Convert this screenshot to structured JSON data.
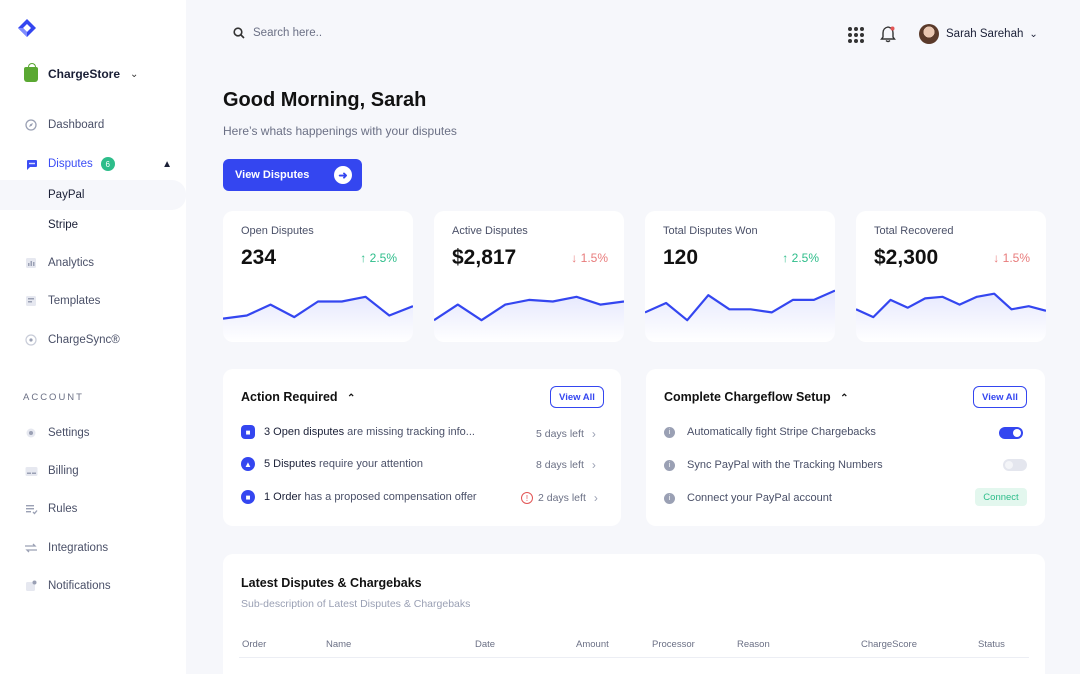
{
  "sidebar": {
    "store_name": "ChargeStore",
    "items": [
      {
        "label": "Dashboard"
      },
      {
        "label": "Disputes",
        "badge": "6"
      },
      {
        "label": "PayPal"
      },
      {
        "label": "Stripe"
      },
      {
        "label": "Analytics"
      },
      {
        "label": "Templates"
      },
      {
        "label": "ChargeSync®"
      }
    ],
    "account_label": "ACCOUNT",
    "account_items": [
      {
        "label": "Settings"
      },
      {
        "label": "Billing"
      },
      {
        "label": "Rules"
      },
      {
        "label": "Integrations"
      },
      {
        "label": "Notifications"
      }
    ]
  },
  "topbar": {
    "search_placeholder": "Search here..",
    "user_name": "Sarah Sarehah"
  },
  "header": {
    "greeting": "Good Morning, Sarah",
    "subtitle": "Here’s whats happenings with your disputes",
    "cta": "View Disputes"
  },
  "stats": [
    {
      "label": "Open Disputes",
      "value": "234",
      "delta": "2.5%",
      "trend": "up",
      "spark": [
        12,
        16,
        30,
        14,
        34,
        34,
        40,
        16,
        28
      ]
    },
    {
      "label": "Active Disputes",
      "value": "$2,817",
      "delta": "1.5%",
      "trend": "down",
      "spark": [
        10,
        30,
        10,
        30,
        36,
        34,
        40,
        30,
        34
      ]
    },
    {
      "label": "Total Disputes Won",
      "value": "120",
      "delta": "2.5%",
      "trend": "up",
      "spark": [
        20,
        32,
        10,
        42,
        24,
        24,
        20,
        36,
        36,
        48
      ]
    },
    {
      "label": "Total Recovered",
      "value": "$2,300",
      "delta": "1.5%",
      "trend": "down",
      "spark": [
        24,
        14,
        36,
        26,
        38,
        40,
        30,
        40,
        44,
        24,
        28,
        22
      ]
    }
  ],
  "colors": {
    "accent": "#3446f0",
    "up": "#2dbd8a",
    "down": "#e87b7b"
  },
  "action_required": {
    "title": "Action Required",
    "view_all": "View All",
    "rows": [
      {
        "strong": "3 Open disputes",
        "text": " are missing tracking info...",
        "days": "5 days left",
        "icon": "chat-icon"
      },
      {
        "strong": "5 Disputes",
        "text": " require your attention",
        "days": "8 days left",
        "icon": "warning-triangle-icon"
      },
      {
        "strong": "1 Order",
        "text": " has a proposed compensation offer",
        "days": "2 days left",
        "icon": "order-icon",
        "urgent": true
      }
    ]
  },
  "setup": {
    "title": "Complete Chargeflow Setup",
    "view_all": "View All",
    "rows": [
      {
        "text": "Automatically fight Stripe Chargebacks",
        "control": "toggle",
        "state": "on"
      },
      {
        "text": "Sync PayPal with the Tracking Numbers",
        "control": "toggle",
        "state": "off"
      },
      {
        "text": "Connect your PayPal account",
        "control": "button",
        "label": "Connect"
      }
    ]
  },
  "latest": {
    "title": "Latest Disputes & Chargebaks",
    "subtitle": "Sub-description of Latest Disputes & Chargebaks",
    "columns": [
      "Order",
      "Name",
      "Date",
      "Amount",
      "Processor",
      "Reason",
      "ChargeScore",
      "Status"
    ]
  }
}
